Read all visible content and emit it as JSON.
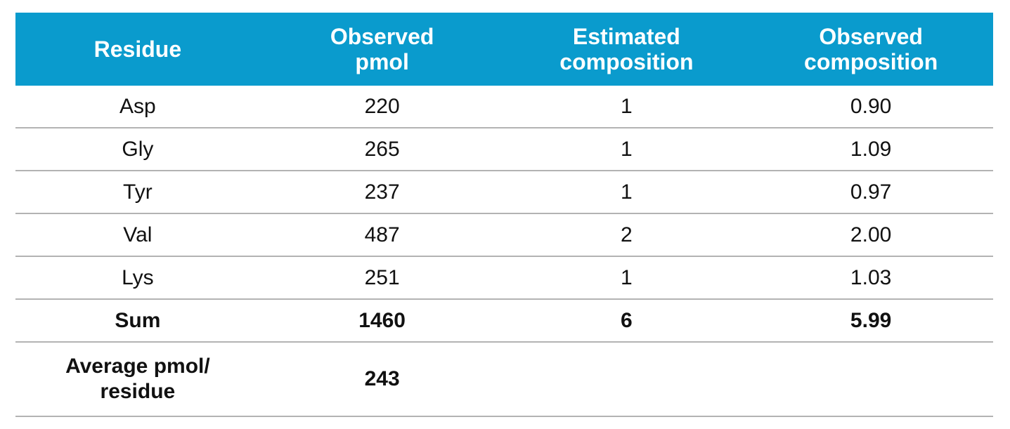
{
  "table": {
    "headers": [
      "Residue",
      "Observed pmol",
      "Estimated composition",
      "Observed composition"
    ],
    "rows": [
      [
        "Asp",
        "220",
        "1",
        "0.90"
      ],
      [
        "Gly",
        "265",
        "1",
        "1.09"
      ],
      [
        "Tyr",
        "237",
        "1",
        "0.97"
      ],
      [
        "Val",
        "487",
        "2",
        "2.00"
      ],
      [
        "Lys",
        "251",
        "1",
        "1.03"
      ]
    ],
    "sum": [
      "Sum",
      "1460",
      "6",
      "5.99"
    ],
    "average": {
      "label": "Average pmol/ residue",
      "value": "243"
    }
  }
}
